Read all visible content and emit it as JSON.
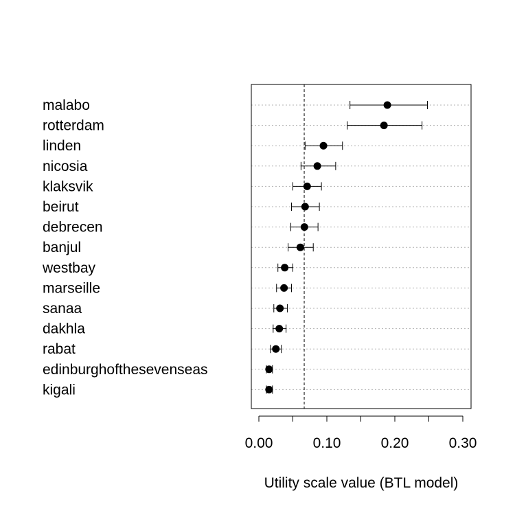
{
  "chart_data": {
    "type": "dotplot-errorbar",
    "xlabel": "Utility scale value (BTL model)",
    "xlim": [
      -0.01,
      0.31
    ],
    "xticks": [
      0.0,
      0.1,
      0.2,
      0.3
    ],
    "xtick_labels": [
      "0.00",
      "0.10",
      "0.20",
      "0.30"
    ],
    "reference_line": 0.0667,
    "grid": "horizontal dotted",
    "categories": [
      "malabo",
      "rotterdam",
      "linden",
      "nicosia",
      "klaksvik",
      "beirut",
      "debrecen",
      "banjul",
      "westbay",
      "marseille",
      "sanaa",
      "dakhla",
      "rabat",
      "edinburghofthesevenseas",
      "kigali"
    ],
    "values": [
      0.189,
      0.184,
      0.095,
      0.086,
      0.071,
      0.068,
      0.067,
      0.061,
      0.038,
      0.037,
      0.031,
      0.03,
      0.025,
      0.015,
      0.015
    ],
    "lower": [
      0.134,
      0.13,
      0.068,
      0.062,
      0.05,
      0.048,
      0.047,
      0.043,
      0.028,
      0.026,
      0.022,
      0.021,
      0.017,
      0.011,
      0.011
    ],
    "upper": [
      0.248,
      0.24,
      0.123,
      0.113,
      0.092,
      0.089,
      0.087,
      0.08,
      0.05,
      0.048,
      0.042,
      0.04,
      0.033,
      0.02,
      0.02
    ]
  }
}
